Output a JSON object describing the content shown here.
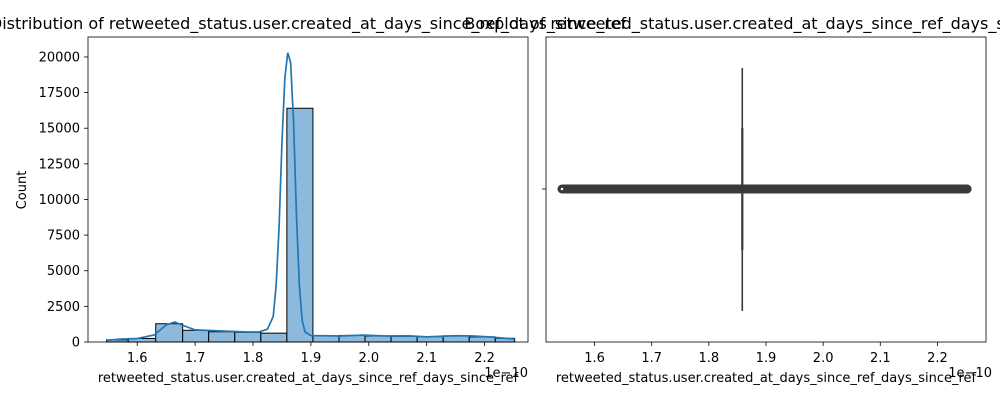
{
  "chart_data": [
    {
      "type": "bar",
      "title": "Distribution of retweeted_status.user.created_at_days_since_ref_days_since_ref",
      "xlabel": "retweeted_status.user.created_at_days_since_ref_days_since_ref",
      "ylabel": "Count",
      "x_offset_label": "1e−10",
      "xlim": [
        1.515,
        2.275
      ],
      "ylim": [
        0,
        21400
      ],
      "x_ticks": [
        1.6,
        1.7,
        1.8,
        1.9,
        2.0,
        2.1,
        2.2
      ],
      "x_tick_labels": [
        "1.6",
        "1.7",
        "1.8",
        "1.9",
        "2.0",
        "2.1",
        "2.2"
      ],
      "y_ticks": [
        0,
        2500,
        5000,
        7500,
        10000,
        12500,
        15000,
        17500,
        20000
      ],
      "y_tick_labels": [
        "0",
        "2500",
        "5000",
        "7500",
        "10000",
        "12500",
        "15000",
        "17500",
        "20000"
      ],
      "bar_color": "#8dbadc",
      "edge_color": "#000000",
      "kde_color": "#1f77b4",
      "bins": [
        {
          "x0": 1.547,
          "x1": 1.5845,
          "count": 150
        },
        {
          "x0": 1.5845,
          "x1": 1.632,
          "count": 250
        },
        {
          "x0": 1.632,
          "x1": 1.6785,
          "count": 1280
        },
        {
          "x0": 1.6785,
          "x1": 1.7235,
          "count": 820
        },
        {
          "x0": 1.7235,
          "x1": 1.7685,
          "count": 720
        },
        {
          "x0": 1.7685,
          "x1": 1.8135,
          "count": 680
        },
        {
          "x0": 1.8135,
          "x1": 1.8585,
          "count": 620
        },
        {
          "x0": 1.8585,
          "x1": 1.9035,
          "count": 16400
        },
        {
          "x0": 1.9035,
          "x1": 1.9485,
          "count": 430
        },
        {
          "x0": 1.9485,
          "x1": 1.9935,
          "count": 460
        },
        {
          "x0": 1.9935,
          "x1": 2.0385,
          "count": 420
        },
        {
          "x0": 2.0385,
          "x1": 2.0835,
          "count": 400
        },
        {
          "x0": 2.0835,
          "x1": 2.1285,
          "count": 380
        },
        {
          "x0": 2.1285,
          "x1": 2.1735,
          "count": 430
        },
        {
          "x0": 2.1735,
          "x1": 2.2185,
          "count": 360
        },
        {
          "x0": 2.2185,
          "x1": 2.252,
          "count": 260
        }
      ],
      "kde": [
        [
          1.547,
          120
        ],
        [
          1.57,
          200
        ],
        [
          1.6,
          240
        ],
        [
          1.63,
          500
        ],
        [
          1.65,
          1200
        ],
        [
          1.665,
          1400
        ],
        [
          1.68,
          1150
        ],
        [
          1.7,
          850
        ],
        [
          1.74,
          780
        ],
        [
          1.79,
          700
        ],
        [
          1.81,
          700
        ],
        [
          1.825,
          900
        ],
        [
          1.835,
          1800
        ],
        [
          1.84,
          4000
        ],
        [
          1.845,
          8000
        ],
        [
          1.85,
          14000
        ],
        [
          1.855,
          18500
        ],
        [
          1.86,
          20300
        ],
        [
          1.865,
          19600
        ],
        [
          1.87,
          15500
        ],
        [
          1.875,
          9000
        ],
        [
          1.88,
          4000
        ],
        [
          1.885,
          1500
        ],
        [
          1.89,
          700
        ],
        [
          1.9,
          450
        ],
        [
          1.95,
          420
        ],
        [
          1.99,
          480
        ],
        [
          2.03,
          420
        ],
        [
          2.07,
          430
        ],
        [
          2.1,
          360
        ],
        [
          2.15,
          440
        ],
        [
          2.18,
          420
        ],
        [
          2.21,
          350
        ],
        [
          2.252,
          200
        ]
      ]
    },
    {
      "type": "box",
      "title": "Boxplot of retweeted_status.user.created_at_days_since_ref_days_since_ref",
      "xlabel": "retweeted_status.user.created_at_days_since_ref_days_since_ref",
      "x_offset_label": "1e−10",
      "xlim": [
        1.515,
        2.285
      ],
      "x_ticks": [
        1.6,
        1.7,
        1.8,
        1.9,
        2.0,
        2.1,
        2.2
      ],
      "x_tick_labels": [
        "1.6",
        "1.7",
        "1.8",
        "1.9",
        "2.0",
        "2.1",
        "2.2"
      ],
      "q1": 1.8585,
      "median": 1.8585,
      "q3": 1.8585,
      "whisker_low": 1.8585,
      "whisker_high": 1.8585,
      "outlier_min": 1.543,
      "outlier_max": 2.252,
      "box_color": "#3a3a3a"
    }
  ]
}
